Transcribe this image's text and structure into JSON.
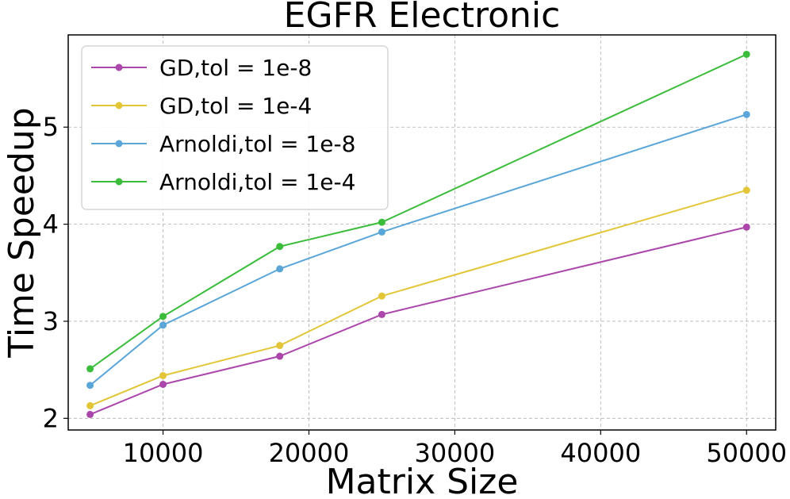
{
  "chart_data": {
    "type": "line",
    "title": "EGFR Electronic",
    "xlabel": "Matrix Size",
    "ylabel": "Time Speedup",
    "x": [
      5000,
      10000,
      18000,
      25000,
      50000
    ],
    "xlim": [
      3500,
      52000
    ],
    "ylim": [
      1.88,
      5.95
    ],
    "xticks": [
      10000,
      20000,
      30000,
      40000,
      50000
    ],
    "yticks": [
      2,
      3,
      4,
      5
    ],
    "grid": true,
    "legend_position": "top-left",
    "series": [
      {
        "name": "GD,tol = 1e-8",
        "color": "#ab47ab",
        "values": [
          2.04,
          2.35,
          2.64,
          3.07,
          3.97
        ]
      },
      {
        "name": "GD,tol = 1e-4",
        "color": "#e3c637",
        "values": [
          2.13,
          2.44,
          2.75,
          3.26,
          4.35
        ]
      },
      {
        "name": "Arnoldi,tol = 1e-8",
        "color": "#5aa6d9",
        "values": [
          2.34,
          2.96,
          3.54,
          3.92,
          5.13
        ]
      },
      {
        "name": "Arnoldi,tol = 1e-4",
        "color": "#3bbd3b",
        "values": [
          2.51,
          3.05,
          3.77,
          4.02,
          5.75
        ]
      }
    ]
  }
}
